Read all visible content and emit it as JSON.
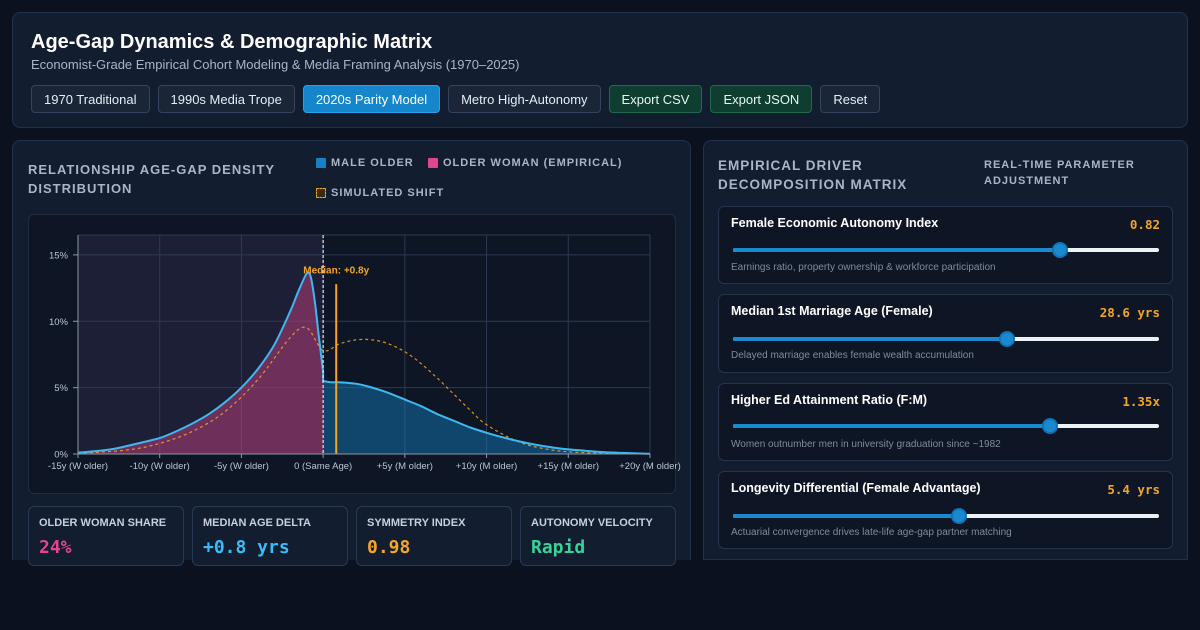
{
  "header": {
    "title": "Age-Gap Dynamics & Demographic Matrix",
    "subtitle": "Economist-Grade Empirical Cohort Modeling & Media Framing Analysis (1970–2025)",
    "buttons": [
      {
        "label": "1970 Traditional",
        "style": "default"
      },
      {
        "label": "1990s Media Trope",
        "style": "default"
      },
      {
        "label": "2020s Parity Model",
        "style": "active"
      },
      {
        "label": "Metro High-Autonomy",
        "style": "default"
      },
      {
        "label": "Export CSV",
        "style": "green"
      },
      {
        "label": "Export JSON",
        "style": "green"
      },
      {
        "label": "Reset",
        "style": "default"
      }
    ]
  },
  "left_panel": {
    "title": "Relationship Age-Gap Density Distribution",
    "legend": [
      {
        "label": "Male Older",
        "color": "#1580c4"
      },
      {
        "label": "Older Woman (Empirical)",
        "color": "#e0458f"
      },
      {
        "label": "Simulated Shift",
        "color": "#f5a524"
      }
    ]
  },
  "chart_data": {
    "type": "area",
    "x_tick_labels": [
      "-15y (W older)",
      "-10y (W older)",
      "-5y (W older)",
      "0 (Same Age)",
      "+5y (M older)",
      "+10y (M older)",
      "+15y (M older)",
      "+20y (M older)"
    ],
    "x_ticks": [
      -15,
      -10,
      -5,
      0,
      5,
      10,
      15,
      20
    ],
    "y_tick_labels": [
      "0%",
      "5%",
      "10%",
      "15%"
    ],
    "y_ticks": [
      0,
      5,
      10,
      15
    ],
    "xlim": [
      -15,
      20
    ],
    "ylim": [
      0,
      16.5
    ],
    "grid": true,
    "annotation": {
      "text": "Median: +0.8y",
      "x": 0.8
    },
    "zero_line_x": 0,
    "series": [
      {
        "name": "Older Woman (Empirical)",
        "color": "#e0458f",
        "x": [
          -15,
          -14,
          -13,
          -12,
          -11,
          -10,
          -9,
          -8,
          -7,
          -6,
          -5,
          -4,
          -3,
          -2,
          -1.5,
          -1,
          -0.75,
          -0.5,
          -0.25,
          0
        ],
        "y": [
          0.1,
          0.2,
          0.35,
          0.6,
          0.9,
          1.2,
          1.7,
          2.3,
          3.0,
          3.9,
          5.0,
          6.4,
          8.2,
          10.8,
          12.3,
          13.6,
          13.3,
          11.4,
          8.7,
          6.2
        ]
      },
      {
        "name": "Male Older",
        "color": "#1580c4",
        "x": [
          0,
          0.5,
          1,
          2,
          3,
          4,
          5,
          6,
          7,
          8,
          9,
          10,
          11,
          12,
          13,
          14,
          15,
          16,
          17,
          18,
          19,
          20
        ],
        "y": [
          5.5,
          5.4,
          5.4,
          5.3,
          5.0,
          4.6,
          4.1,
          3.6,
          3.0,
          2.5,
          2.0,
          1.6,
          1.25,
          0.95,
          0.7,
          0.5,
          0.35,
          0.25,
          0.15,
          0.1,
          0.05,
          0.02
        ]
      },
      {
        "name": "Simulated Shift",
        "color": "#f5a524",
        "x": [
          -15,
          -12,
          -10,
          -8,
          -6,
          -4,
          -2,
          -1,
          0,
          1,
          2,
          3,
          4,
          5,
          6,
          7,
          8,
          9,
          10,
          12,
          14,
          16,
          18,
          20
        ],
        "y": [
          0.05,
          0.3,
          0.8,
          1.7,
          3.2,
          5.6,
          8.8,
          9.5,
          7.8,
          8.3,
          8.6,
          8.6,
          8.3,
          7.7,
          6.8,
          5.7,
          4.5,
          3.3,
          2.2,
          0.9,
          0.3,
          0.1,
          0.03,
          0.01
        ]
      }
    ]
  },
  "stats": [
    {
      "label": "Older Woman Share",
      "value": "24%",
      "color": "#e0458f"
    },
    {
      "label": "Median Age Delta",
      "value": "+0.8 yrs",
      "color": "#38bdf8"
    },
    {
      "label": "Symmetry Index",
      "value": "0.98",
      "color": "#f5a524"
    },
    {
      "label": "Autonomy Velocity",
      "value": "Rapid",
      "color": "#34d399"
    }
  ],
  "right_panel": {
    "title": "Empirical Driver Decomposition Matrix",
    "subtitle": "Real-Time Parameter Adjustment",
    "params": [
      {
        "name": "Female Economic Autonomy Index",
        "value_text": "0.82",
        "fraction": 0.767,
        "desc": "Earnings ratio, property ownership & workforce participation"
      },
      {
        "name": "Median 1st Marriage Age (Female)",
        "value_text": "28.6 yrs",
        "fraction": 0.643,
        "desc": "Delayed marriage enables female wealth accumulation"
      },
      {
        "name": "Higher Ed Attainment Ratio (F:M)",
        "value_text": "1.35x",
        "fraction": 0.743,
        "desc": "Women outnumber men in university graduation since ~1982"
      },
      {
        "name": "Longevity Differential (Female Advantage)",
        "value_text": "5.4 yrs",
        "fraction": 0.53,
        "desc": "Actuarial convergence drives late-life age-gap partner matching"
      }
    ]
  }
}
